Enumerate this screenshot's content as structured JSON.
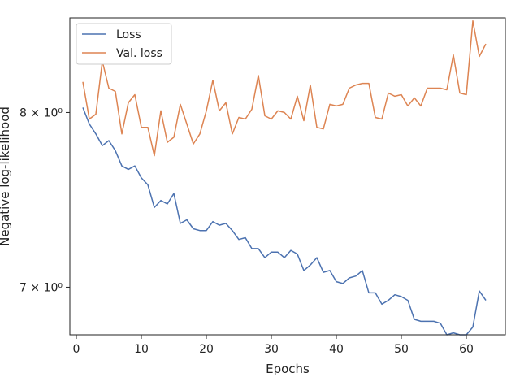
{
  "chart_data": {
    "type": "line",
    "title": "",
    "xlabel": "Epochs",
    "ylabel": "Negative log-likelihood",
    "xlim": [
      -1,
      66
    ],
    "ylim": [
      6.75,
      8.6
    ],
    "y_scale": "log",
    "x_ticks": [
      0,
      10,
      20,
      30,
      40,
      50,
      60
    ],
    "y_ticks": [
      {
        "value": 7,
        "label": "7 × 10⁰"
      },
      {
        "value": 8,
        "label": "8 × 10⁰"
      }
    ],
    "grid": false,
    "legend_position": "top-left",
    "x": [
      1,
      2,
      3,
      4,
      5,
      6,
      7,
      8,
      9,
      10,
      11,
      12,
      13,
      14,
      15,
      16,
      17,
      18,
      19,
      20,
      21,
      22,
      23,
      24,
      25,
      26,
      27,
      28,
      29,
      30,
      31,
      32,
      33,
      34,
      35,
      36,
      37,
      38,
      39,
      40,
      41,
      42,
      43,
      44,
      45,
      46,
      47,
      48,
      49,
      50,
      51,
      52,
      53,
      54,
      55,
      56,
      57,
      58,
      59,
      60,
      61,
      62,
      63
    ],
    "series": [
      {
        "name": "Loss",
        "color": "#4c72b0",
        "values": [
          8.03,
          7.93,
          7.87,
          7.8,
          7.83,
          7.77,
          7.68,
          7.66,
          7.68,
          7.61,
          7.57,
          7.44,
          7.48,
          7.46,
          7.52,
          7.35,
          7.37,
          7.32,
          7.31,
          7.31,
          7.36,
          7.34,
          7.35,
          7.31,
          7.26,
          7.27,
          7.21,
          7.21,
          7.16,
          7.19,
          7.19,
          7.16,
          7.2,
          7.18,
          7.09,
          7.12,
          7.16,
          7.08,
          7.09,
          7.03,
          7.02,
          7.05,
          7.06,
          7.09,
          6.97,
          6.97,
          6.91,
          6.93,
          6.96,
          6.95,
          6.93,
          6.83,
          6.82,
          6.82,
          6.82,
          6.81,
          6.75,
          6.76,
          6.75,
          6.75,
          6.79,
          6.98,
          6.93
        ]
      },
      {
        "name": "Val. loss",
        "color": "#dd8452",
        "values": [
          8.19,
          7.96,
          7.99,
          8.32,
          8.15,
          8.13,
          7.87,
          8.06,
          8.11,
          7.91,
          7.91,
          7.74,
          8.01,
          7.82,
          7.85,
          8.05,
          7.93,
          7.81,
          7.87,
          8.01,
          8.2,
          8.01,
          8.06,
          7.87,
          7.97,
          7.96,
          8.02,
          8.23,
          7.98,
          7.96,
          8.01,
          8.0,
          7.96,
          8.1,
          7.95,
          8.17,
          7.91,
          7.9,
          8.05,
          8.04,
          8.05,
          8.15,
          8.17,
          8.18,
          8.18,
          7.97,
          7.96,
          8.12,
          8.1,
          8.11,
          8.04,
          8.09,
          8.04,
          8.15,
          8.15,
          8.15,
          8.14,
          8.36,
          8.12,
          8.11,
          8.58,
          8.35,
          8.43
        ]
      }
    ]
  }
}
